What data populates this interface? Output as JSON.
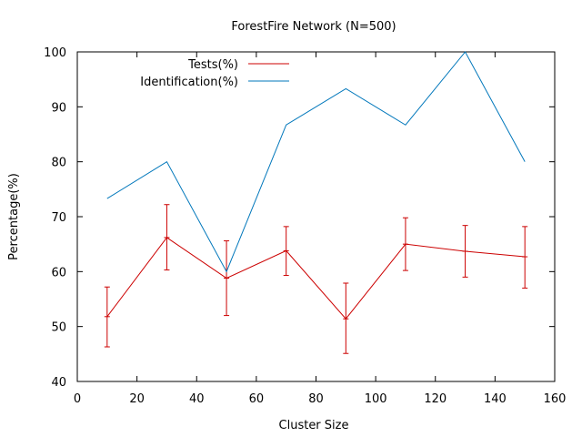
{
  "chart_data": {
    "type": "line",
    "title": "ForestFire Network (N=500)",
    "xlabel": "Cluster Size",
    "ylabel": "Percentage(%)",
    "xlim": [
      0,
      160
    ],
    "ylim": [
      40,
      100
    ],
    "xticks": [
      0,
      20,
      40,
      60,
      80,
      100,
      120,
      140,
      160
    ],
    "yticks": [
      40,
      50,
      60,
      70,
      80,
      90,
      100
    ],
    "grid": false,
    "legend_position": "top-left",
    "series": [
      {
        "name": "Tests(%)",
        "color": "#cc0000",
        "x": [
          10,
          30,
          50,
          70,
          90,
          110,
          130,
          150
        ],
        "y": [
          51.8,
          66.2,
          58.8,
          63.8,
          51.4,
          65.0,
          63.7,
          62.7
        ],
        "error_low": [
          46.3,
          60.3,
          52.0,
          59.3,
          45.1,
          60.2,
          59.0,
          57.0
        ],
        "error_high": [
          57.2,
          72.2,
          65.6,
          68.2,
          57.9,
          69.8,
          68.4,
          68.2
        ]
      },
      {
        "name": "Identification(%)",
        "color": "#0077bb",
        "x": [
          10,
          30,
          50,
          70,
          90,
          110,
          130,
          150
        ],
        "y": [
          73.3,
          80.0,
          60.0,
          86.7,
          93.3,
          86.7,
          100.0,
          80.0
        ]
      }
    ]
  }
}
